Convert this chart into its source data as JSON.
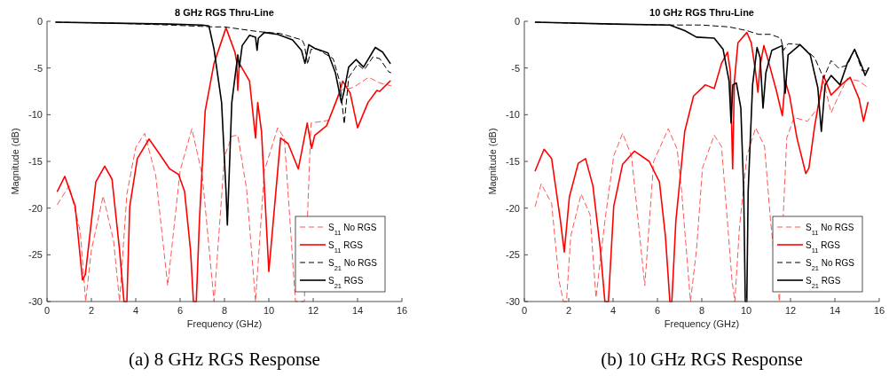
{
  "chart_data": [
    {
      "type": "line",
      "title": "8 GHz RGS Thru-Line",
      "xlabel": "Frequency (GHz)",
      "ylabel": "Magnitude (dB)",
      "xlim": [
        0,
        16
      ],
      "xticks": [
        0,
        2,
        4,
        6,
        8,
        10,
        12,
        14,
        16
      ],
      "ylim": [
        -30,
        0
      ],
      "yticks": [
        -30,
        -25,
        -20,
        -15,
        -10,
        -5,
        0
      ],
      "legend": "bottom right",
      "annotations": [
        "(a) 8 GHz RGS Response"
      ],
      "series": [
        {
          "name": "S$_{11}$ No RGS",
          "color": "#ff5555",
          "line_style": "dashed",
          "x": [
            0.47,
            1.0,
            1.5,
            1.74,
            2.0,
            2.53,
            3.0,
            3.27,
            3.6,
            4.0,
            4.4,
            4.9,
            5.44,
            6.0,
            6.53,
            7.0,
            7.53,
            8.0,
            8.33,
            8.6,
            9.0,
            9.4,
            9.8,
            10.4,
            10.7,
            11.2,
            11.6,
            11.9,
            12.7,
            13.2,
            13.8,
            14.5,
            15.0,
            15.5
          ],
          "values": [
            -19.6,
            -17.6,
            -22.5,
            -30,
            -24.5,
            -18.7,
            -23.5,
            -30,
            -18.5,
            -13.5,
            -12.0,
            -16.5,
            -28.3,
            -16.0,
            -11.5,
            -16.5,
            -30,
            -14.5,
            -12.3,
            -12.2,
            -18.0,
            -30,
            -16.0,
            -11.4,
            -12.5,
            -30,
            -30,
            -10.9,
            -10.6,
            -7.4,
            -7.1,
            -6.0,
            -6.6,
            -6.9
          ]
        },
        {
          "name": "S$_{11}$ RGS",
          "color": "#ff0000",
          "line_style": "solid",
          "x": [
            0.47,
            0.8,
            1.27,
            1.6,
            1.73,
            2.2,
            2.6,
            2.93,
            3.27,
            3.47,
            3.6,
            3.73,
            4.07,
            4.6,
            5.13,
            5.53,
            5.93,
            6.2,
            6.47,
            6.6,
            6.73,
            6.87,
            7.13,
            7.53,
            8.07,
            8.47,
            8.55,
            8.6,
            8.67,
            9.13,
            9.4,
            9.5,
            9.67,
            10.0,
            10.2,
            10.53,
            10.87,
            11.33,
            11.6,
            11.73,
            11.93,
            12.07,
            12.6,
            13.13,
            13.33,
            13.67,
            14.0,
            14.47,
            14.87,
            15.0,
            15.47
          ],
          "values": [
            -18.2,
            -16.6,
            -19.8,
            -27.7,
            -27.1,
            -17.2,
            -15.5,
            -16.9,
            -24.5,
            -30,
            -30,
            -19.8,
            -14.7,
            -12.6,
            -14.4,
            -15.8,
            -16.4,
            -18.2,
            -24.5,
            -30,
            -30,
            -21.4,
            -9.6,
            -4.5,
            -0.7,
            -3.3,
            -4.3,
            -7.4,
            -4.5,
            -6.4,
            -12.5,
            -8.7,
            -11.8,
            -26.8,
            -21.4,
            -12.5,
            -13.1,
            -15.8,
            -12.5,
            -10.9,
            -13.6,
            -12.2,
            -11.2,
            -8.0,
            -6.4,
            -7.7,
            -11.4,
            -8.7,
            -7.4,
            -7.5,
            -6.4
          ]
        },
        {
          "name": "S$_{21}$ No RGS",
          "color": "#000000",
          "line_style": "dashed",
          "x": [
            0.4,
            3.0,
            5.5,
            7.5,
            8.0,
            9.5,
            10.5,
            11.5,
            11.6,
            11.75,
            11.9,
            12.2,
            12.9,
            13.2,
            13.4,
            13.6,
            14.0,
            14.3,
            14.7,
            15.0,
            15.4,
            15.5
          ],
          "values": [
            -0.1,
            -0.2,
            -0.4,
            -0.6,
            -0.6,
            -1.1,
            -1.3,
            -2.0,
            -2.5,
            -4.6,
            -3.0,
            -3.0,
            -4.0,
            -6.5,
            -11.0,
            -6.0,
            -4.6,
            -5.2,
            -3.8,
            -4.0,
            -5.4,
            -5.5
          ]
        },
        {
          "name": "S$_{21}$ RGS",
          "color": "#000000",
          "line_style": "solid",
          "x": [
            0.4,
            3.0,
            5.5,
            7.0,
            7.3,
            7.53,
            7.87,
            8.07,
            8.13,
            8.33,
            8.6,
            8.67,
            8.8,
            9.13,
            9.4,
            9.47,
            9.53,
            9.8,
            10.4,
            11.07,
            11.47,
            11.63,
            11.8,
            12.07,
            12.67,
            13.0,
            13.27,
            13.4,
            13.6,
            13.93,
            14.27,
            14.8,
            15.13,
            15.47
          ],
          "values": [
            -0.1,
            -0.2,
            -0.3,
            -0.4,
            -0.5,
            -3.0,
            -8.7,
            -18.2,
            -21.8,
            -8.7,
            -3.6,
            -4.9,
            -2.6,
            -1.5,
            -1.7,
            -3.1,
            -1.8,
            -1.2,
            -1.4,
            -2.0,
            -3.1,
            -4.5,
            -2.5,
            -2.9,
            -3.4,
            -5.5,
            -8.7,
            -7.4,
            -4.9,
            -4.1,
            -4.9,
            -2.8,
            -3.3,
            -4.5
          ]
        }
      ]
    },
    {
      "type": "line",
      "title": "10 GHz RGS Thru-Line",
      "xlabel": "Frequency (GHz)",
      "ylabel": "Magnitude (dB)",
      "xlim": [
        0,
        16
      ],
      "xticks": [
        0,
        2,
        4,
        6,
        8,
        10,
        12,
        14,
        16
      ],
      "ylim": [
        -30,
        0
      ],
      "yticks": [
        -30,
        -25,
        -20,
        -15,
        -10,
        -5,
        0
      ],
      "legend": "bottom right",
      "annotations": [
        "(b) 10 GHz RGS Response"
      ],
      "series": [
        {
          "name": "S$_{11}$ No RGS",
          "color": "#ff5555",
          "line_style": "dashed",
          "x": [
            0.49,
            0.76,
            1.23,
            1.56,
            1.76,
            1.9,
            2.09,
            2.56,
            2.96,
            3.23,
            3.63,
            4.03,
            4.43,
            4.83,
            5.43,
            5.83,
            6.49,
            6.89,
            7.09,
            7.49,
            7.76,
            8.03,
            8.56,
            8.89,
            9.36,
            9.49,
            9.7,
            10.03,
            10.43,
            10.83,
            11.1,
            11.5,
            11.83,
            12.16,
            12.76,
            13.23,
            13.49,
            13.83,
            14.03,
            14.56,
            15.09,
            15.49
          ],
          "values": [
            -19.8,
            -17.4,
            -19.5,
            -27.7,
            -30,
            -30,
            -23.0,
            -18.5,
            -20.7,
            -29.6,
            -21.4,
            -14.4,
            -12.0,
            -14.4,
            -28.3,
            -15.0,
            -11.5,
            -13.7,
            -18.2,
            -30,
            -24.5,
            -15.7,
            -12.2,
            -13.4,
            -27.7,
            -30,
            -22.0,
            -14.4,
            -11.4,
            -13.4,
            -21.4,
            -30,
            -12.5,
            -10.3,
            -10.7,
            -9.3,
            -6.4,
            -9.8,
            -8.7,
            -6.1,
            -6.4,
            -7.1
          ]
        },
        {
          "name": "S$_{11}$ RGS",
          "color": "#ff0000",
          "line_style": "solid",
          "x": [
            0.49,
            0.89,
            1.23,
            1.63,
            1.8,
            2.03,
            2.43,
            2.76,
            3.09,
            3.43,
            3.63,
            3.79,
            4.03,
            4.43,
            4.96,
            5.63,
            6.09,
            6.36,
            6.56,
            6.65,
            6.83,
            7.23,
            7.63,
            8.16,
            8.56,
            8.89,
            9.16,
            9.29,
            9.39,
            9.47,
            9.63,
            10.03,
            10.23,
            10.43,
            10.53,
            10.63,
            10.8,
            11.03,
            11.36,
            11.63,
            11.76,
            11.96,
            12.29,
            12.69,
            12.83,
            13.09,
            13.49,
            13.83,
            14.29,
            14.69,
            15.09,
            15.29,
            15.49
          ],
          "values": [
            -16.0,
            -13.7,
            -14.7,
            -21.4,
            -24.7,
            -18.8,
            -15.2,
            -14.7,
            -17.6,
            -24.5,
            -30,
            -30,
            -19.8,
            -15.3,
            -13.9,
            -15.0,
            -17.2,
            -23.0,
            -30,
            -30,
            -21.4,
            -11.8,
            -8.0,
            -6.8,
            -7.2,
            -4.5,
            -3.3,
            -5.5,
            -15.8,
            -6.4,
            -2.3,
            -1.2,
            -2.3,
            -5.5,
            -7.6,
            -4.7,
            -2.6,
            -4.5,
            -7.4,
            -10.1,
            -6.4,
            -8.0,
            -12.5,
            -16.3,
            -15.7,
            -11.2,
            -5.8,
            -7.9,
            -6.8,
            -6.0,
            -8.3,
            -10.7,
            -8.7
          ]
        },
        {
          "name": "S$_{21}$ No RGS",
          "color": "#000000",
          "line_style": "dashed",
          "x": [
            0.5,
            4.0,
            6.5,
            8.0,
            9.23,
            10.03,
            10.56,
            11.09,
            11.56,
            11.69,
            11.89,
            12.43,
            13.09,
            13.49,
            13.83,
            14.16,
            14.56,
            14.89,
            15.23,
            15.49
          ],
          "values": [
            -0.1,
            -0.3,
            -0.4,
            -0.4,
            -0.6,
            -1.0,
            -1.4,
            -1.4,
            -1.8,
            -3.1,
            -2.4,
            -2.5,
            -3.9,
            -6.1,
            -4.2,
            -5.0,
            -4.7,
            -3.0,
            -5.3,
            -5.3
          ]
        },
        {
          "name": "S$_{21}$ RGS",
          "color": "#000000",
          "line_style": "solid",
          "x": [
            0.5,
            4.0,
            6.56,
            7.23,
            7.76,
            8.56,
            8.96,
            9.23,
            9.32,
            9.4,
            9.56,
            9.76,
            9.89,
            9.96,
            10.03,
            10.09,
            10.29,
            10.49,
            10.63,
            10.76,
            10.89,
            11.16,
            11.63,
            11.76,
            11.89,
            12.43,
            12.89,
            13.23,
            13.39,
            13.56,
            13.83,
            14.23,
            14.56,
            14.89,
            15.23,
            15.36,
            15.52
          ],
          "values": [
            -0.1,
            -0.3,
            -0.4,
            -1.0,
            -1.7,
            -1.8,
            -3.0,
            -6.4,
            -10.9,
            -6.8,
            -6.6,
            -9.3,
            -18.2,
            -30,
            -30,
            -18.2,
            -6.8,
            -2.8,
            -3.9,
            -9.3,
            -5.5,
            -3.1,
            -2.6,
            -7.7,
            -3.6,
            -2.5,
            -3.6,
            -7.1,
            -11.8,
            -6.8,
            -5.8,
            -6.8,
            -4.5,
            -3.0,
            -4.9,
            -5.8,
            -5.0
          ]
        }
      ]
    }
  ]
}
